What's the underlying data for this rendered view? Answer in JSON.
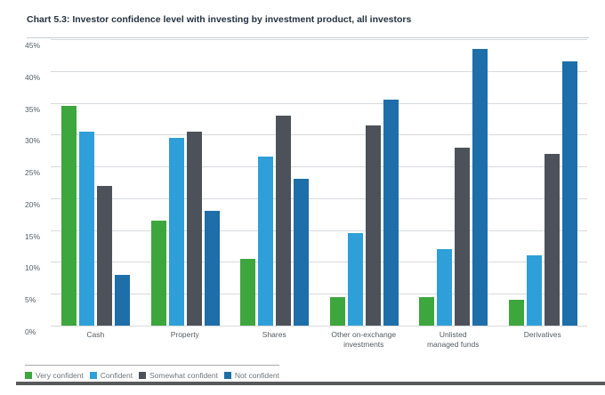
{
  "title": "Chart 5.3: Investor confidence level with investing by investment product, all investors",
  "chart_data": {
    "type": "bar",
    "title": "Chart 5.3: Investor confidence level with investing by investment product, all investors",
    "categories": [
      "Cash",
      "Property",
      "Shares",
      "Other on-exchange\ninvestments",
      "Unlisted\nmanaged funds",
      "Derivatives"
    ],
    "series": [
      {
        "name": "Very confident",
        "color": "#3da63c",
        "values": [
          34.5,
          16.5,
          10.5,
          4.5,
          4.5,
          4
        ]
      },
      {
        "name": "Confident",
        "color": "#2e9fd8",
        "values": [
          30.5,
          29.5,
          26.5,
          14.5,
          12,
          11
        ]
      },
      {
        "name": "Somewhat confident",
        "color": "#4d525a",
        "values": [
          22,
          30.5,
          33,
          31.5,
          28,
          27
        ]
      },
      {
        "name": "Not confident",
        "color": "#1e6ea9",
        "values": [
          8,
          18,
          23,
          35.5,
          43.5,
          41.5
        ]
      }
    ],
    "xlabel": "",
    "ylabel": "",
    "ylim": [
      0,
      45
    ],
    "ytick_step": 5,
    "ytick_suffix": "%",
    "grid": true,
    "legend_position": "bottom-left"
  }
}
